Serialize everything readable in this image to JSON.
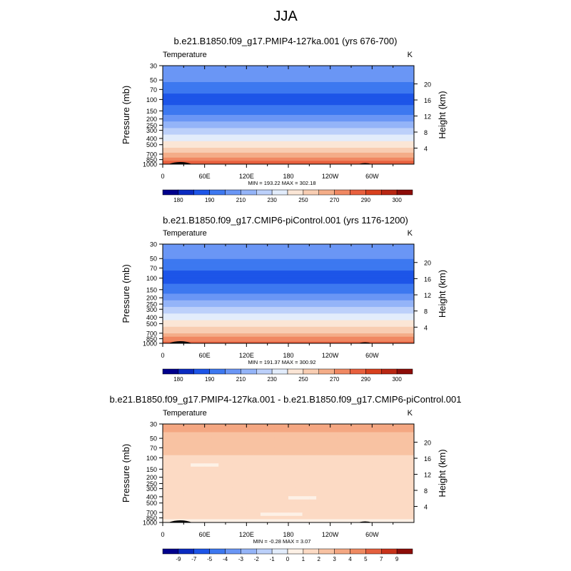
{
  "page_title": "JJA",
  "colors": {
    "panel_scale": [
      "#00008c",
      "#0a2ac0",
      "#1d55e8",
      "#3d78f0",
      "#6a96f5",
      "#94b4f8",
      "#bcd0fa",
      "#e2ecfb",
      "#fbe6d6",
      "#f8cdb2",
      "#f4ad88",
      "#f08862",
      "#e8603e",
      "#d8401e",
      "#b82612",
      "#8c0c08"
    ],
    "diff_scale": [
      "#00008c",
      "#0a2ac0",
      "#1d55e8",
      "#3d78f0",
      "#6a96f5",
      "#94b4f8",
      "#bcd0fa",
      "#e2ecfb",
      "#fdf1e6",
      "#fcdac4",
      "#f8c2a2",
      "#f4a782",
      "#ef8a62",
      "#e4603e",
      "#c8321a",
      "#8c0c08"
    ],
    "topography": "#000000"
  },
  "chart_data": [
    {
      "type": "contour",
      "title": "b.e21.B1850.f09_g17.PMIP4-127ka.001 (yrs 676-700)",
      "left_label": "Temperature",
      "right_label": "K",
      "ylabel": "Pressure (mb)",
      "ylabel_right": "Height (km)",
      "x_ticks": [
        "0",
        "60E",
        "120E",
        "180",
        "120W",
        "60W"
      ],
      "x_tick_values": [
        0,
        60,
        120,
        180,
        240,
        300
      ],
      "xlim": [
        0,
        360
      ],
      "y_ticks": [
        30,
        50,
        70,
        100,
        150,
        200,
        250,
        300,
        400,
        500,
        700,
        850,
        1000
      ],
      "ylim": [
        30,
        1000
      ],
      "y_scale": "log",
      "height_ticks": [
        4,
        8,
        12,
        16,
        20
      ],
      "stats": "MIN = 193.22  MAX = 302.18",
      "colorbar_labels": [
        "180",
        "190",
        "210",
        "230",
        "250",
        "270",
        "290",
        "300"
      ],
      "profile": [
        [
          30,
          220
        ],
        [
          50,
          212
        ],
        [
          70,
          203
        ],
        [
          100,
          196
        ],
        [
          150,
          205
        ],
        [
          200,
          216
        ],
        [
          250,
          226
        ],
        [
          300,
          234
        ],
        [
          400,
          246
        ],
        [
          500,
          255
        ],
        [
          700,
          272
        ],
        [
          850,
          286
        ],
        [
          1000,
          296
        ]
      ],
      "anomaly": "none"
    },
    {
      "type": "contour",
      "title": "b.e21.B1850.f09_g17.CMIP6-piControl.001 (yrs 1176-1200)",
      "left_label": "Temperature",
      "right_label": "K",
      "ylabel": "Pressure (mb)",
      "ylabel_right": "Height (km)",
      "x_ticks": [
        "0",
        "60E",
        "120E",
        "180",
        "120W",
        "60W"
      ],
      "x_tick_values": [
        0,
        60,
        120,
        180,
        240,
        300
      ],
      "xlim": [
        0,
        360
      ],
      "y_ticks": [
        30,
        50,
        70,
        100,
        150,
        200,
        250,
        300,
        400,
        500,
        700,
        850,
        1000
      ],
      "ylim": [
        30,
        1000
      ],
      "y_scale": "log",
      "height_ticks": [
        4,
        8,
        12,
        16,
        20
      ],
      "stats": "MIN = 191.37  MAX = 300.92",
      "colorbar_labels": [
        "180",
        "190",
        "210",
        "230",
        "250",
        "270",
        "290",
        "300"
      ],
      "profile": [
        [
          30,
          219
        ],
        [
          50,
          211
        ],
        [
          70,
          202
        ],
        [
          100,
          195
        ],
        [
          150,
          204
        ],
        [
          200,
          215
        ],
        [
          250,
          225
        ],
        [
          300,
          233
        ],
        [
          400,
          245
        ],
        [
          500,
          254
        ],
        [
          700,
          271
        ],
        [
          850,
          285
        ],
        [
          1000,
          295
        ]
      ],
      "anomaly": "none"
    },
    {
      "type": "contour",
      "title": "b.e21.B1850.f09_g17.PMIP4-127ka.001 - b.e21.B1850.f09_g17.CMIP6-piControl.001",
      "left_label": "Temperature",
      "right_label": "K",
      "ylabel": "Pressure (mb)",
      "ylabel_right": "Height (km)",
      "x_ticks": [
        "0",
        "60E",
        "120E",
        "180",
        "120W",
        "60W"
      ],
      "x_tick_values": [
        0,
        60,
        120,
        180,
        240,
        300
      ],
      "xlim": [
        0,
        360
      ],
      "y_ticks": [
        30,
        50,
        70,
        100,
        150,
        200,
        250,
        300,
        400,
        500,
        700,
        850,
        1000
      ],
      "ylim": [
        30,
        1000
      ],
      "y_scale": "log",
      "height_ticks": [
        4,
        8,
        12,
        16,
        20
      ],
      "stats": "MIN =  -0.28  MAX =   3.07",
      "colorbar_labels": [
        "-9",
        "-7",
        "-5",
        "-4",
        "-3",
        "-2",
        "-1",
        "0",
        "1",
        "2",
        "3",
        "4",
        "5",
        "7",
        "9"
      ],
      "levels": [
        1,
        2,
        3
      ],
      "anomaly": "difference"
    }
  ]
}
